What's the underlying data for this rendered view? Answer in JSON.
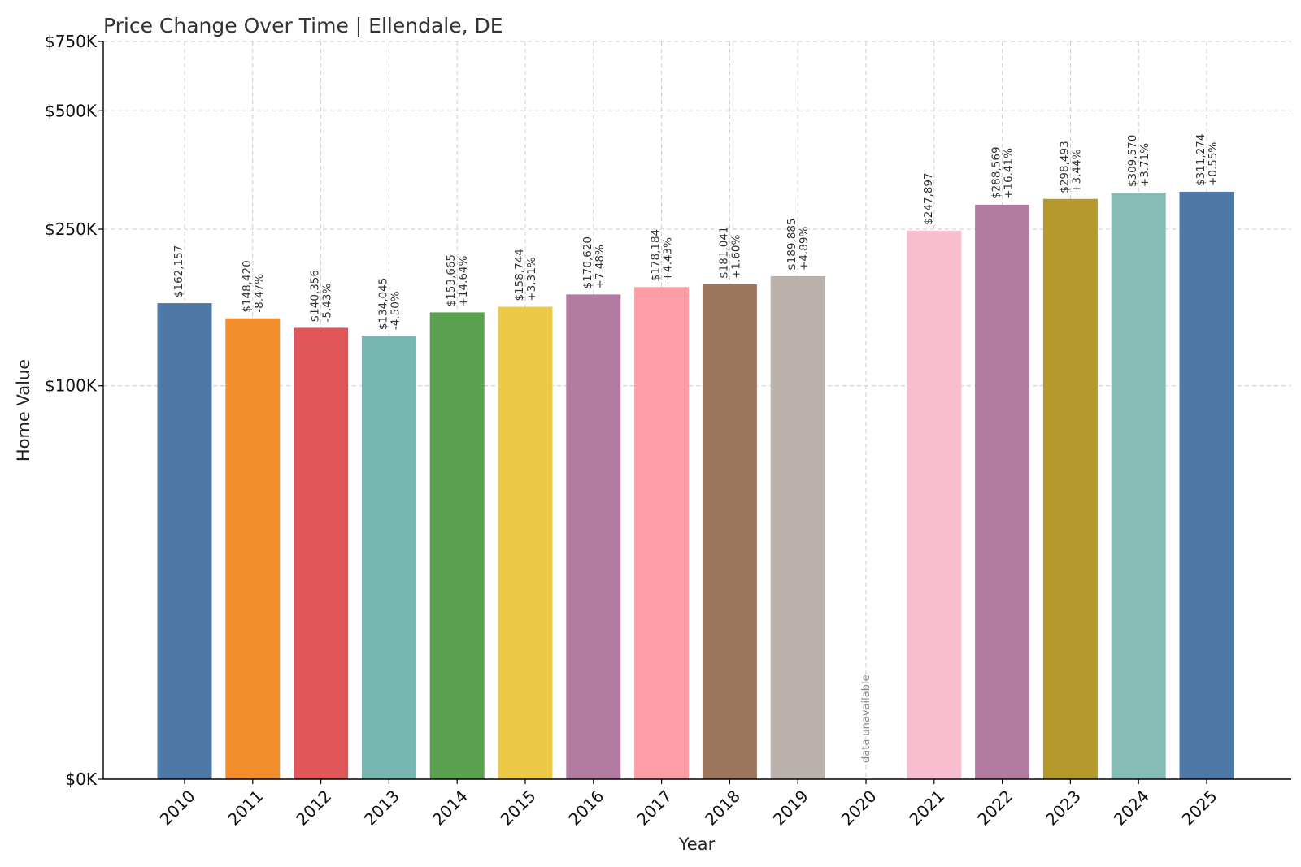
{
  "chart_data": {
    "type": "bar",
    "title": "Price Change Over Time | Ellendale, DE",
    "xlabel": "Year",
    "ylabel": "Home Value",
    "ylim": [
      0,
      750000
    ],
    "y_scale": "symlog",
    "yticks": [
      {
        "value": 0,
        "label": "$0K"
      },
      {
        "value": 100000,
        "label": "$100K"
      },
      {
        "value": 250000,
        "label": "$250K"
      },
      {
        "value": 500000,
        "label": "$500K"
      },
      {
        "value": 750000,
        "label": "$750K"
      }
    ],
    "grid": true,
    "categories": [
      "2010",
      "2011",
      "2012",
      "2013",
      "2014",
      "2015",
      "2016",
      "2017",
      "2018",
      "2019",
      "2020",
      "2021",
      "2022",
      "2023",
      "2024",
      "2025"
    ],
    "values": [
      162157,
      148420,
      140356,
      134045,
      153665,
      158744,
      170620,
      178184,
      181041,
      189885,
      null,
      247897,
      288569,
      298493,
      309570,
      311274
    ],
    "value_labels": [
      "$162,157",
      "$148,420",
      "$140,356",
      "$134,045",
      "$153,665",
      "$158,744",
      "$170,620",
      "$178,184",
      "$181,041",
      "$189,885",
      "",
      "$247,897",
      "$288,569",
      "$298,493",
      "$309,570",
      "$311,274"
    ],
    "change_labels": [
      "",
      "-8.47%",
      "-5.43%",
      "-4.50%",
      "+14.64%",
      "+3.31%",
      "+7.48%",
      "+4.43%",
      "+1.60%",
      "+4.89%",
      "",
      "",
      "+16.41%",
      "+3.44%",
      "+3.71%",
      "+0.55%"
    ],
    "missing_label": "data unavailable",
    "colors": [
      "#4e79a7",
      "#f28e2b",
      "#e15759",
      "#76b7b2",
      "#59a14f",
      "#edc948",
      "#b07aa1",
      "#ff9da7",
      "#9c755f",
      "#bab0ac",
      "#ffffff",
      "#f9bdd0",
      "#b07aa1",
      "#b5992c",
      "#86bcb6",
      "#4e79a7"
    ]
  }
}
